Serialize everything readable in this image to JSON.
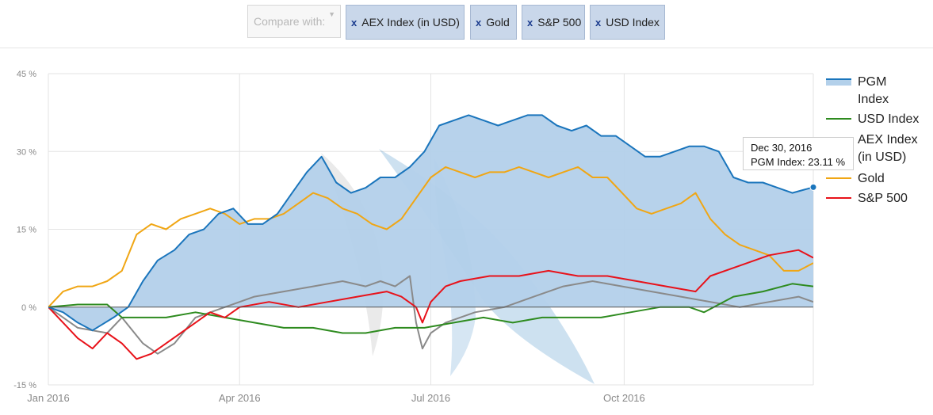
{
  "toolbar": {
    "compare_placeholder": "Compare with:",
    "chips": [
      {
        "label": "AEX Index (in USD)",
        "remove": "x"
      },
      {
        "label": "Gold",
        "remove": "x"
      },
      {
        "label": "S&P 500",
        "remove": "x"
      },
      {
        "label": "USD Index",
        "remove": "x"
      }
    ]
  },
  "tooltip": {
    "date": "Dec 30, 2016",
    "label": "PGM Index:",
    "value": "23.11 %"
  },
  "colors": {
    "pgm_line": "#1a75bc",
    "pgm_fill": "#b3d0ea",
    "usd": "#2e8b1f",
    "aex": "#8a8a8a",
    "gold": "#f0a614",
    "sp500": "#e8121a"
  },
  "chart_data": {
    "type": "line",
    "x_unit": "date",
    "xlim": [
      "2016-01-01",
      "2016-12-30"
    ],
    "ylim": [
      -15,
      45
    ],
    "y_ticks": [
      "45 %",
      "30 %",
      "15 %",
      "0 %",
      "-15 %"
    ],
    "y_tick_values": [
      45,
      30,
      15,
      0,
      -15
    ],
    "x_ticks": [
      "Jan 2016",
      "Apr 2016",
      "Jul 2016",
      "Oct 2016"
    ],
    "x_tick_values": [
      "2016-01-01",
      "2016-04-01",
      "2016-07-01",
      "2016-10-01"
    ],
    "grid": true,
    "legend_position": "right",
    "legend": [
      "PGM Index",
      "USD Index",
      "AEX Index (in USD)",
      "Gold",
      "S&P 500"
    ],
    "series": [
      {
        "name": "PGM Index",
        "style": "area",
        "points": [
          [
            "2016-01-01",
            0
          ],
          [
            "2016-01-08",
            -1
          ],
          [
            "2016-01-15",
            -3
          ],
          [
            "2016-01-22",
            -4.5
          ],
          [
            "2016-02-01",
            -2
          ],
          [
            "2016-02-08",
            0
          ],
          [
            "2016-02-15",
            5
          ],
          [
            "2016-02-22",
            9
          ],
          [
            "2016-03-01",
            11
          ],
          [
            "2016-03-08",
            14
          ],
          [
            "2016-03-15",
            15
          ],
          [
            "2016-03-22",
            18
          ],
          [
            "2016-03-29",
            19
          ],
          [
            "2016-04-05",
            16
          ],
          [
            "2016-04-12",
            16
          ],
          [
            "2016-04-19",
            18
          ],
          [
            "2016-04-26",
            22
          ],
          [
            "2016-05-03",
            26
          ],
          [
            "2016-05-10",
            29
          ],
          [
            "2016-05-17",
            24
          ],
          [
            "2016-05-24",
            22
          ],
          [
            "2016-05-31",
            23
          ],
          [
            "2016-06-07",
            25
          ],
          [
            "2016-06-14",
            25
          ],
          [
            "2016-06-21",
            27
          ],
          [
            "2016-06-28",
            30
          ],
          [
            "2016-07-05",
            35
          ],
          [
            "2016-07-12",
            36
          ],
          [
            "2016-07-19",
            37
          ],
          [
            "2016-07-26",
            36
          ],
          [
            "2016-08-02",
            35
          ],
          [
            "2016-08-09",
            36
          ],
          [
            "2016-08-16",
            37
          ],
          [
            "2016-08-23",
            37
          ],
          [
            "2016-08-30",
            35
          ],
          [
            "2016-09-06",
            34
          ],
          [
            "2016-09-13",
            35
          ],
          [
            "2016-09-20",
            33
          ],
          [
            "2016-09-27",
            33
          ],
          [
            "2016-10-04",
            31
          ],
          [
            "2016-10-11",
            29
          ],
          [
            "2016-10-18",
            29
          ],
          [
            "2016-10-25",
            30
          ],
          [
            "2016-11-01",
            31
          ],
          [
            "2016-11-08",
            31
          ],
          [
            "2016-11-15",
            30
          ],
          [
            "2016-11-22",
            25
          ],
          [
            "2016-11-29",
            24
          ],
          [
            "2016-12-06",
            24
          ],
          [
            "2016-12-13",
            23
          ],
          [
            "2016-12-20",
            22
          ],
          [
            "2016-12-30",
            23.11
          ]
        ]
      },
      {
        "name": "USD Index",
        "points": [
          [
            "2016-01-01",
            0
          ],
          [
            "2016-01-15",
            0.5
          ],
          [
            "2016-01-29",
            0.5
          ],
          [
            "2016-02-05",
            -2
          ],
          [
            "2016-02-12",
            -2
          ],
          [
            "2016-02-26",
            -2
          ],
          [
            "2016-03-11",
            -1
          ],
          [
            "2016-03-25",
            -2
          ],
          [
            "2016-04-08",
            -3
          ],
          [
            "2016-04-22",
            -4
          ],
          [
            "2016-05-06",
            -4
          ],
          [
            "2016-05-20",
            -5
          ],
          [
            "2016-05-31",
            -5
          ],
          [
            "2016-06-14",
            -4
          ],
          [
            "2016-06-28",
            -4
          ],
          [
            "2016-07-12",
            -3
          ],
          [
            "2016-07-26",
            -2
          ],
          [
            "2016-08-09",
            -3
          ],
          [
            "2016-08-23",
            -2
          ],
          [
            "2016-09-06",
            -2
          ],
          [
            "2016-09-20",
            -2
          ],
          [
            "2016-10-04",
            -1
          ],
          [
            "2016-10-18",
            0
          ],
          [
            "2016-11-01",
            0
          ],
          [
            "2016-11-08",
            -1
          ],
          [
            "2016-11-22",
            2
          ],
          [
            "2016-12-06",
            3
          ],
          [
            "2016-12-20",
            4.5
          ],
          [
            "2016-12-30",
            4
          ]
        ]
      },
      {
        "name": "AEX Index (in USD)",
        "points": [
          [
            "2016-01-01",
            0
          ],
          [
            "2016-01-15",
            -4
          ],
          [
            "2016-01-29",
            -5
          ],
          [
            "2016-02-05",
            -2
          ],
          [
            "2016-02-15",
            -7
          ],
          [
            "2016-02-22",
            -9
          ],
          [
            "2016-03-01",
            -7
          ],
          [
            "2016-03-11",
            -2
          ],
          [
            "2016-03-25",
            0
          ],
          [
            "2016-04-08",
            2
          ],
          [
            "2016-04-22",
            3
          ],
          [
            "2016-05-06",
            4
          ],
          [
            "2016-05-20",
            5
          ],
          [
            "2016-05-31",
            4
          ],
          [
            "2016-06-07",
            5
          ],
          [
            "2016-06-14",
            4
          ],
          [
            "2016-06-21",
            6
          ],
          [
            "2016-06-24",
            -3
          ],
          [
            "2016-06-27",
            -8
          ],
          [
            "2016-07-01",
            -5
          ],
          [
            "2016-07-08",
            -3
          ],
          [
            "2016-07-22",
            -1
          ],
          [
            "2016-08-05",
            0
          ],
          [
            "2016-08-19",
            2
          ],
          [
            "2016-09-02",
            4
          ],
          [
            "2016-09-16",
            5
          ],
          [
            "2016-09-30",
            4
          ],
          [
            "2016-10-14",
            3
          ],
          [
            "2016-10-28",
            2
          ],
          [
            "2016-11-11",
            1
          ],
          [
            "2016-11-25",
            0
          ],
          [
            "2016-12-09",
            1
          ],
          [
            "2016-12-23",
            2
          ],
          [
            "2016-12-30",
            1
          ]
        ]
      },
      {
        "name": "Gold",
        "points": [
          [
            "2016-01-01",
            0
          ],
          [
            "2016-01-08",
            3
          ],
          [
            "2016-01-15",
            4
          ],
          [
            "2016-01-22",
            4
          ],
          [
            "2016-01-29",
            5
          ],
          [
            "2016-02-05",
            7
          ],
          [
            "2016-02-12",
            14
          ],
          [
            "2016-02-19",
            16
          ],
          [
            "2016-02-26",
            15
          ],
          [
            "2016-03-04",
            17
          ],
          [
            "2016-03-11",
            18
          ],
          [
            "2016-03-18",
            19
          ],
          [
            "2016-03-25",
            18
          ],
          [
            "2016-04-01",
            16
          ],
          [
            "2016-04-08",
            17
          ],
          [
            "2016-04-15",
            17
          ],
          [
            "2016-04-22",
            18
          ],
          [
            "2016-04-29",
            20
          ],
          [
            "2016-05-06",
            22
          ],
          [
            "2016-05-13",
            21
          ],
          [
            "2016-05-20",
            19
          ],
          [
            "2016-05-27",
            18
          ],
          [
            "2016-06-03",
            16
          ],
          [
            "2016-06-10",
            15
          ],
          [
            "2016-06-17",
            17
          ],
          [
            "2016-06-24",
            21
          ],
          [
            "2016-07-01",
            25
          ],
          [
            "2016-07-08",
            27
          ],
          [
            "2016-07-15",
            26
          ],
          [
            "2016-07-22",
            25
          ],
          [
            "2016-07-29",
            26
          ],
          [
            "2016-08-05",
            26
          ],
          [
            "2016-08-12",
            27
          ],
          [
            "2016-08-19",
            26
          ],
          [
            "2016-08-26",
            25
          ],
          [
            "2016-09-02",
            26
          ],
          [
            "2016-09-09",
            27
          ],
          [
            "2016-09-16",
            25
          ],
          [
            "2016-09-23",
            25
          ],
          [
            "2016-09-30",
            22
          ],
          [
            "2016-10-07",
            19
          ],
          [
            "2016-10-14",
            18
          ],
          [
            "2016-10-21",
            19
          ],
          [
            "2016-10-28",
            20
          ],
          [
            "2016-11-04",
            22
          ],
          [
            "2016-11-11",
            17
          ],
          [
            "2016-11-18",
            14
          ],
          [
            "2016-11-25",
            12
          ],
          [
            "2016-12-02",
            11
          ],
          [
            "2016-12-09",
            10
          ],
          [
            "2016-12-16",
            7
          ],
          [
            "2016-12-23",
            7
          ],
          [
            "2016-12-30",
            8.5
          ]
        ]
      },
      {
        "name": "S&P 500",
        "points": [
          [
            "2016-01-01",
            0
          ],
          [
            "2016-01-08",
            -3
          ],
          [
            "2016-01-15",
            -6
          ],
          [
            "2016-01-22",
            -8
          ],
          [
            "2016-01-29",
            -5
          ],
          [
            "2016-02-05",
            -7
          ],
          [
            "2016-02-12",
            -10
          ],
          [
            "2016-02-19",
            -9
          ],
          [
            "2016-02-26",
            -7
          ],
          [
            "2016-03-04",
            -5
          ],
          [
            "2016-03-11",
            -3
          ],
          [
            "2016-03-18",
            -1
          ],
          [
            "2016-03-25",
            -2
          ],
          [
            "2016-04-01",
            0
          ],
          [
            "2016-04-15",
            1
          ],
          [
            "2016-04-29",
            0
          ],
          [
            "2016-05-13",
            1
          ],
          [
            "2016-05-27",
            2
          ],
          [
            "2016-06-10",
            3
          ],
          [
            "2016-06-17",
            2
          ],
          [
            "2016-06-24",
            0
          ],
          [
            "2016-06-27",
            -3
          ],
          [
            "2016-07-01",
            1
          ],
          [
            "2016-07-08",
            4
          ],
          [
            "2016-07-15",
            5
          ],
          [
            "2016-07-29",
            6
          ],
          [
            "2016-08-12",
            6
          ],
          [
            "2016-08-26",
            7
          ],
          [
            "2016-09-09",
            6
          ],
          [
            "2016-09-23",
            6
          ],
          [
            "2016-10-07",
            5
          ],
          [
            "2016-10-21",
            4
          ],
          [
            "2016-11-04",
            3
          ],
          [
            "2016-11-11",
            6
          ],
          [
            "2016-11-25",
            8
          ],
          [
            "2016-12-09",
            10
          ],
          [
            "2016-12-23",
            11
          ],
          [
            "2016-12-30",
            9.5
          ]
        ]
      }
    ]
  }
}
